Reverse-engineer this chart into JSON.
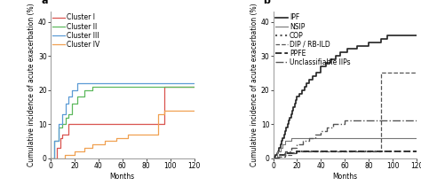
{
  "panel_a": {
    "title": "a",
    "xlabel": "Months",
    "ylabel": "Cumulative incidence of acute exacerbation (%)",
    "ylim": [
      0,
      43
    ],
    "xlim": [
      0,
      120
    ],
    "yticks": [
      0,
      10,
      20,
      30,
      40
    ],
    "xticks": [
      0,
      20,
      40,
      60,
      80,
      100,
      120
    ],
    "series": [
      {
        "label": "Cluster I",
        "color": "#d9534f",
        "linewidth": 0.9,
        "x": [
          0,
          5,
          5,
          8,
          8,
          10,
          10,
          15,
          15,
          95,
          95,
          100,
          100,
          120
        ],
        "y": [
          0,
          0,
          3,
          3,
          6,
          6,
          7,
          7,
          10,
          10,
          21,
          21,
          21,
          21
        ]
      },
      {
        "label": "Cluster II",
        "color": "#5cb85c",
        "linewidth": 0.9,
        "x": [
          0,
          3,
          3,
          7,
          7,
          10,
          10,
          13,
          13,
          15,
          15,
          18,
          18,
          22,
          22,
          28,
          28,
          35,
          35,
          38,
          38,
          120
        ],
        "y": [
          0,
          0,
          5,
          5,
          9,
          9,
          10,
          10,
          12,
          12,
          13,
          13,
          16,
          16,
          18,
          18,
          20,
          20,
          21,
          21,
          21,
          21
        ]
      },
      {
        "label": "Cluster III",
        "color": "#5b9bd5",
        "linewidth": 0.9,
        "x": [
          0,
          3,
          3,
          7,
          7,
          10,
          10,
          13,
          13,
          15,
          15,
          18,
          18,
          22,
          22,
          28,
          28,
          35,
          35,
          40,
          40,
          120
        ],
        "y": [
          0,
          0,
          5,
          5,
          10,
          10,
          13,
          13,
          16,
          16,
          18,
          18,
          20,
          20,
          22,
          22,
          22,
          22,
          22,
          22,
          22,
          22
        ]
      },
      {
        "label": "Cluster IV",
        "color": "#f0a050",
        "linewidth": 0.9,
        "x": [
          0,
          12,
          12,
          20,
          20,
          28,
          28,
          35,
          35,
          45,
          45,
          55,
          55,
          65,
          65,
          90,
          90,
          95,
          95,
          120
        ],
        "y": [
          0,
          0,
          1,
          1,
          2,
          2,
          3,
          3,
          4,
          4,
          5,
          5,
          6,
          6,
          7,
          7,
          13,
          13,
          14,
          14
        ]
      }
    ]
  },
  "panel_b": {
    "title": "b",
    "xlabel": "Months",
    "ylabel": "Cumulative incidence of acute exacerbation (%)",
    "ylim": [
      0,
      43
    ],
    "xlim": [
      0,
      120
    ],
    "yticks": [
      0,
      10,
      20,
      30,
      40
    ],
    "xticks": [
      0,
      20,
      40,
      60,
      80,
      100,
      120
    ],
    "series": [
      {
        "label": "IPF",
        "color": "#222222",
        "linestyle": "solid",
        "linewidth": 1.2,
        "x": [
          0,
          1,
          1,
          2,
          2,
          3,
          3,
          4,
          4,
          5,
          5,
          6,
          6,
          7,
          7,
          8,
          8,
          9,
          9,
          10,
          10,
          11,
          11,
          12,
          12,
          13,
          13,
          14,
          14,
          15,
          15,
          16,
          16,
          17,
          17,
          18,
          18,
          19,
          19,
          20,
          20,
          22,
          22,
          24,
          24,
          26,
          26,
          28,
          28,
          30,
          30,
          33,
          33,
          36,
          36,
          40,
          40,
          44,
          44,
          48,
          48,
          52,
          52,
          56,
          56,
          62,
          62,
          70,
          70,
          80,
          80,
          90,
          90,
          95,
          95,
          100,
          100,
          110,
          110,
          120
        ],
        "y": [
          0,
          0,
          0.5,
          0.5,
          1,
          1,
          1.5,
          1.5,
          2,
          2,
          3,
          3,
          4,
          4,
          5,
          5,
          6,
          6,
          7,
          7,
          8,
          8,
          9,
          9,
          10,
          10,
          11,
          11,
          12,
          12,
          13,
          13,
          14,
          14,
          15,
          15,
          16,
          16,
          17,
          17,
          18,
          18,
          19,
          19,
          20,
          20,
          21,
          21,
          22,
          22,
          23,
          23,
          24,
          24,
          25,
          25,
          27,
          27,
          28,
          28,
          29,
          29,
          30,
          30,
          31,
          31,
          32,
          32,
          33,
          33,
          34,
          34,
          35,
          35,
          36,
          36,
          36,
          36,
          36,
          36
        ]
      },
      {
        "label": "NSIP",
        "color": "#777777",
        "linestyle": "solid",
        "linewidth": 0.8,
        "x": [
          0,
          3,
          3,
          6,
          6,
          8,
          8,
          10,
          10,
          15,
          15,
          20,
          20,
          30,
          30,
          120
        ],
        "y": [
          0,
          0,
          2,
          2,
          3,
          3,
          4,
          4,
          5,
          5,
          6,
          6,
          6,
          6,
          6,
          6
        ]
      },
      {
        "label": "COP",
        "color": "#555555",
        "linestyle": "dotted",
        "linewidth": 1.5,
        "x": [
          0,
          5,
          5,
          10,
          10,
          20,
          20,
          30,
          30,
          120
        ],
        "y": [
          0,
          0,
          1,
          1,
          1.5,
          1.5,
          2,
          2,
          2,
          2
        ]
      },
      {
        "label": "DIP / RB-ILD",
        "color": "#555555",
        "linestyle": "dashed",
        "linewidth": 0.9,
        "x": [
          0,
          5,
          5,
          10,
          10,
          15,
          15,
          20,
          20,
          90,
          90,
          100,
          100,
          120
        ],
        "y": [
          0,
          0,
          0.5,
          0.5,
          1,
          1,
          1.5,
          1.5,
          2,
          2,
          25,
          25,
          25,
          25
        ]
      },
      {
        "label": "PPFE",
        "color": "#333333",
        "linestyle": "dashed",
        "linewidth": 1.4,
        "x": [
          0,
          5,
          5,
          10,
          10,
          20,
          20,
          120
        ],
        "y": [
          0,
          0,
          1,
          1,
          1.5,
          1.5,
          2,
          2
        ]
      },
      {
        "label": "Unclassifiable IIPs",
        "color": "#555555",
        "linestyle": "dashdot",
        "linewidth": 1.0,
        "x": [
          0,
          5,
          5,
          10,
          10,
          15,
          15,
          20,
          20,
          25,
          25,
          30,
          30,
          35,
          35,
          40,
          40,
          45,
          45,
          50,
          50,
          60,
          60,
          90,
          90,
          100,
          100,
          120
        ],
        "y": [
          0,
          0,
          1,
          1,
          2,
          2,
          3,
          3,
          4,
          4,
          5,
          5,
          6,
          6,
          7,
          7,
          8,
          8,
          9,
          9,
          10,
          10,
          11,
          11,
          11,
          11,
          11,
          11
        ]
      }
    ]
  },
  "fig_bg": "#ffffff",
  "axes_bg": "#ffffff",
  "label_fontsize": 5.5,
  "tick_fontsize": 5.5,
  "legend_fontsize": 5.5,
  "title_fontsize": 8
}
